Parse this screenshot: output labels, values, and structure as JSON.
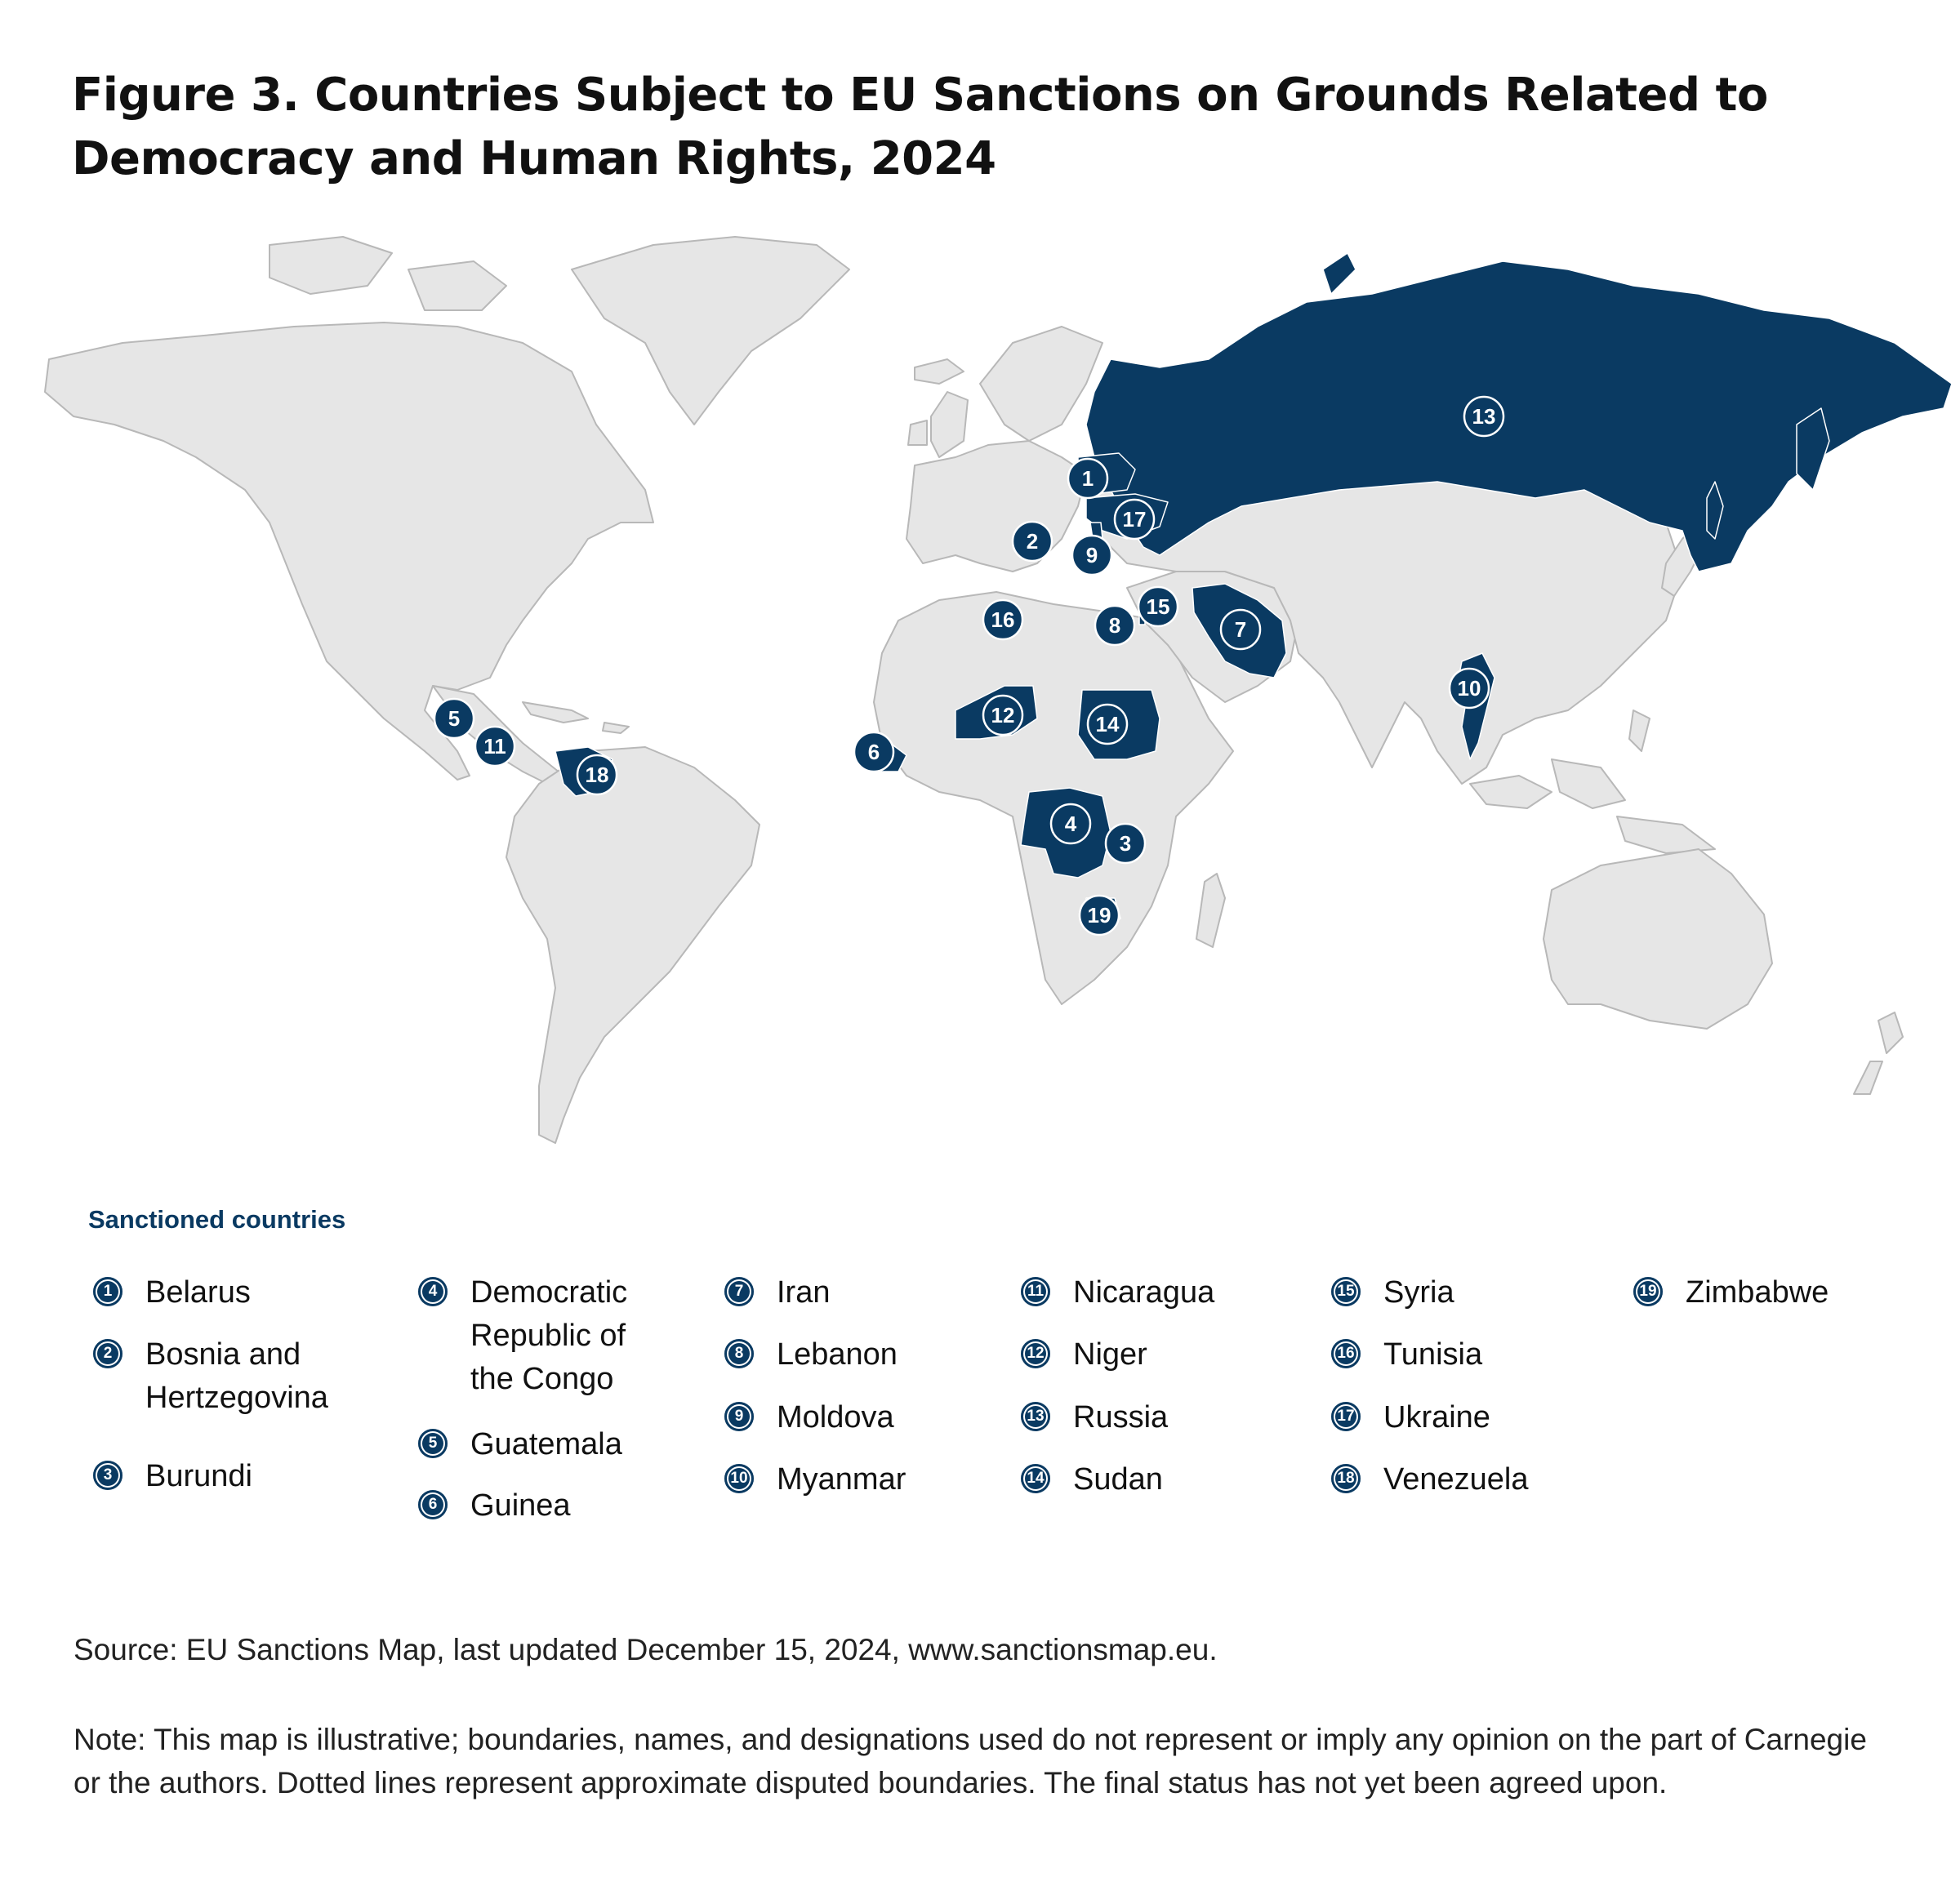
{
  "title": "Figure 3. Countries Subject to EU Sanctions on Grounds Related to Democracy and Human Rights, 2024",
  "colors": {
    "sanctioned": "#0a3a62",
    "land": "#e6e6e6",
    "border": "#b8b8b8",
    "background": "#ffffff"
  },
  "map": {
    "markers": [
      {
        "num": "1",
        "country": "Belarus"
      },
      {
        "num": "2",
        "country": "Bosnia and Hertzegovina"
      },
      {
        "num": "3",
        "country": "Burundi"
      },
      {
        "num": "4",
        "country": "Democratic Republic of the Congo"
      },
      {
        "num": "5",
        "country": "Guatemala"
      },
      {
        "num": "6",
        "country": "Guinea"
      },
      {
        "num": "7",
        "country": "Iran"
      },
      {
        "num": "8",
        "country": "Lebanon"
      },
      {
        "num": "9",
        "country": "Moldova"
      },
      {
        "num": "10",
        "country": "Myanmar"
      },
      {
        "num": "11",
        "country": "Nicaragua"
      },
      {
        "num": "12",
        "country": "Niger"
      },
      {
        "num": "13",
        "country": "Russia"
      },
      {
        "num": "14",
        "country": "Sudan"
      },
      {
        "num": "15",
        "country": "Syria"
      },
      {
        "num": "16",
        "country": "Tunisia"
      },
      {
        "num": "17",
        "country": "Ukraine"
      },
      {
        "num": "18",
        "country": "Venezuela"
      },
      {
        "num": "19",
        "country": "Zimbabwe"
      }
    ]
  },
  "legend": {
    "heading": "Sanctioned countries",
    "items": [
      {
        "num": "1",
        "label": "Belarus"
      },
      {
        "num": "2",
        "label": "Bosnia and Hertzegovina"
      },
      {
        "num": "3",
        "label": "Burundi"
      },
      {
        "num": "4",
        "label": "Democratic Republic of the Congo"
      },
      {
        "num": "5",
        "label": "Guatemala"
      },
      {
        "num": "6",
        "label": "Guinea"
      },
      {
        "num": "7",
        "label": "Iran"
      },
      {
        "num": "8",
        "label": "Lebanon"
      },
      {
        "num": "9",
        "label": "Moldova"
      },
      {
        "num": "10",
        "label": "Myanmar"
      },
      {
        "num": "11",
        "label": "Nicaragua"
      },
      {
        "num": "12",
        "label": "Niger"
      },
      {
        "num": "13",
        "label": "Russia"
      },
      {
        "num": "14",
        "label": "Sudan"
      },
      {
        "num": "15",
        "label": "Syria"
      },
      {
        "num": "16",
        "label": "Tunisia"
      },
      {
        "num": "17",
        "label": "Ukraine"
      },
      {
        "num": "18",
        "label": "Venezuela"
      },
      {
        "num": "19",
        "label": "Zimbabwe"
      }
    ]
  },
  "source": "Source: EU Sanctions Map, last updated December 15, 2024, www.sanctionsmap.eu.",
  "note": "Note: This map is illustrative; boundaries, names, and designations used do not represent or imply any opinion on the part of Carnegie or the authors. Dotted lines represent approximate disputed boundaries. The final status has not yet been agreed upon."
}
